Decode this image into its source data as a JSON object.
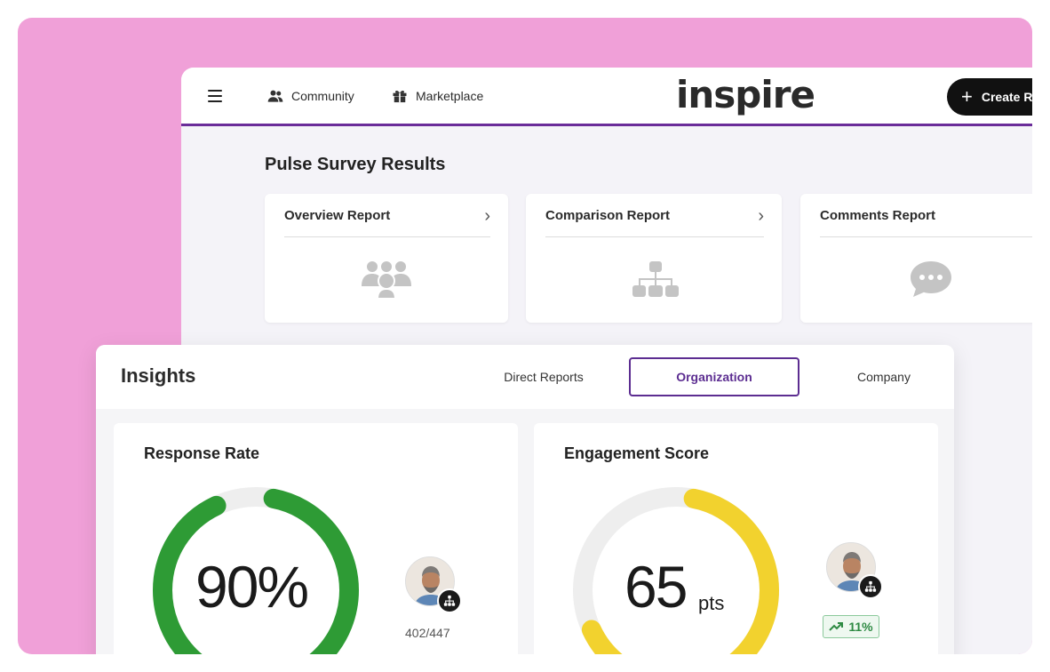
{
  "topbar": {
    "nav": [
      {
        "label": "Community",
        "icon": "people-icon"
      },
      {
        "label": "Marketplace",
        "icon": "gift-icon"
      }
    ],
    "brand": "inspire",
    "create_label": "Create R",
    "accent_color": "#6a2c99"
  },
  "pulse": {
    "title": "Pulse Survey Results",
    "reports": [
      {
        "label": "Overview Report",
        "icon": "group-icon"
      },
      {
        "label": "Comparison Report",
        "icon": "org-chart-icon"
      },
      {
        "label": "Comments Report",
        "icon": "chat-bubble-icon"
      }
    ]
  },
  "insights": {
    "title": "Insights",
    "tabs": [
      {
        "label": "Direct Reports",
        "active": false
      },
      {
        "label": "Organization",
        "active": true
      },
      {
        "label": "Company",
        "active": false
      }
    ],
    "response_rate": {
      "title": "Response Rate",
      "value": "90%",
      "fraction": 0.9,
      "ratio": "402/447",
      "color": "#2e9b35"
    },
    "engagement": {
      "title": "Engagement Score",
      "value": "65",
      "unit": "pts",
      "fraction": 0.65,
      "trend": "11%",
      "color": "#f2d22e"
    }
  }
}
